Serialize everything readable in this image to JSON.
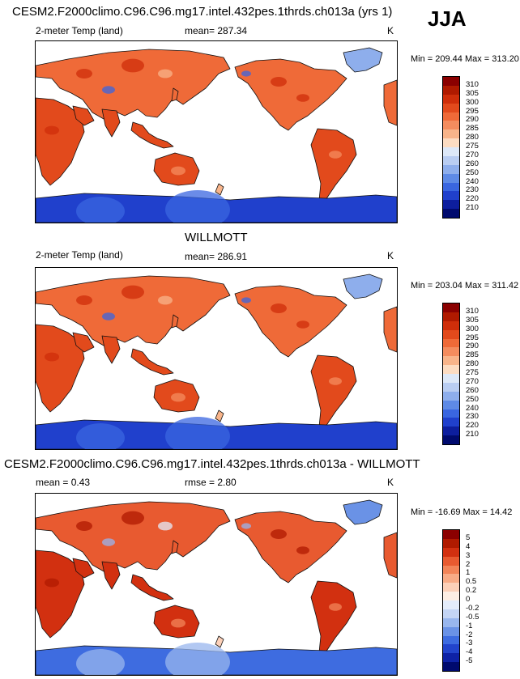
{
  "season": "JJA",
  "panels": [
    {
      "title": "CESM2.F2000climo.C96.C96.mg17.intel.432pes.1thrds.ch013a (yrs 1)",
      "variable": "2-meter Temp (land)",
      "mean_text": "mean= 287.34",
      "units": "K",
      "minmax": "Min = 209.44 Max = 313.20",
      "levels": [
        "310",
        "305",
        "300",
        "295",
        "290",
        "285",
        "280",
        "275",
        "270",
        "260",
        "250",
        "240",
        "230",
        "220",
        "210"
      ],
      "colors": [
        "#8b0000",
        "#b01a00",
        "#cf2e0a",
        "#e24a1c",
        "#ef6a38",
        "#f48c5e",
        "#f8b48a",
        "#fcdcc2",
        "#dde8f8",
        "#b9cdf2",
        "#8eaeec",
        "#5e8ae6",
        "#3a66e0",
        "#2040cc",
        "#0d1e9e",
        "#000a6e"
      ],
      "theme": "model"
    },
    {
      "title": "WILLMOTT",
      "variable": "2-meter Temp (land)",
      "mean_text": "mean= 286.91",
      "units": "K",
      "minmax": "Min = 203.04 Max = 311.42",
      "levels": [
        "310",
        "305",
        "300",
        "295",
        "290",
        "285",
        "280",
        "275",
        "270",
        "260",
        "250",
        "240",
        "230",
        "220",
        "210"
      ],
      "colors": [
        "#8b0000",
        "#b01a00",
        "#cf2e0a",
        "#e24a1c",
        "#ef6a38",
        "#f48c5e",
        "#f8b48a",
        "#fcdcc2",
        "#dde8f8",
        "#b9cdf2",
        "#8eaeec",
        "#5e8ae6",
        "#3a66e0",
        "#2040cc",
        "#0d1e9e",
        "#000a6e"
      ],
      "theme": "obs"
    },
    {
      "title": "CESM2.F2000climo.C96.C96.mg17.intel.432pes.1thrds.ch013a - WILLMOTT",
      "mean_text": "mean =   0.43",
      "rmse_text": "rmse =   2.80",
      "units": "K",
      "minmax": "Min = -16.69 Max =  14.42",
      "levels": [
        "5",
        "4",
        "3",
        "2",
        "1",
        "0.5",
        "0.2",
        "0",
        "-0.2",
        "-0.5",
        "-1",
        "-2",
        "-3",
        "-4",
        "-5"
      ],
      "colors": [
        "#8b0000",
        "#b01a00",
        "#d23010",
        "#e85a30",
        "#f28458",
        "#f8ab86",
        "#fcd0b8",
        "#fdeee4",
        "#e4ecfa",
        "#c4d5f5",
        "#98b6ee",
        "#6a92e6",
        "#3e6ce0",
        "#2244cc",
        "#0e22a6",
        "#000a6e"
      ],
      "theme": "diff"
    }
  ]
}
